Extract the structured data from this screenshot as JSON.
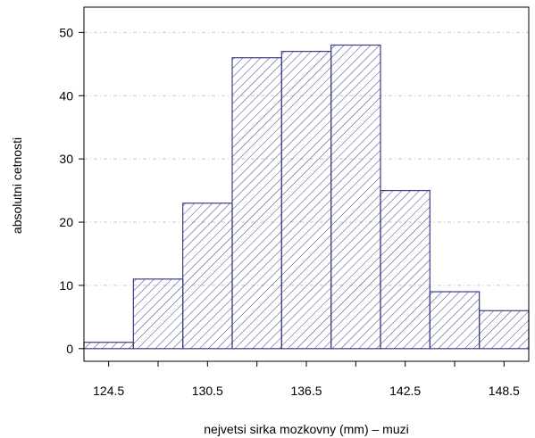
{
  "chart_data": {
    "type": "bar",
    "title": "",
    "xlabel": "nejvetsi sirka mozkovny (mm) – muzi",
    "ylabel": "absolutni cetnosti",
    "bins": [
      {
        "from": 123,
        "to": 126,
        "count": 1
      },
      {
        "from": 126,
        "to": 129,
        "count": 11
      },
      {
        "from": 129,
        "to": 132,
        "count": 23
      },
      {
        "from": 132,
        "to": 135,
        "count": 46
      },
      {
        "from": 135,
        "to": 138,
        "count": 47
      },
      {
        "from": 138,
        "to": 141,
        "count": 48
      },
      {
        "from": 141,
        "to": 144,
        "count": 25
      },
      {
        "from": 144,
        "to": 147,
        "count": 9
      },
      {
        "from": 147,
        "to": 150,
        "count": 6
      }
    ],
    "x_ticks": [
      124.5,
      127.5,
      130.5,
      133.5,
      136.5,
      139.5,
      142.5,
      145.5,
      148.5
    ],
    "x_tick_labels": [
      "124.5",
      "",
      "130.5",
      "",
      "136.5",
      "",
      "142.5",
      "",
      "148.5"
    ],
    "y_ticks": [
      0,
      10,
      20,
      30,
      40,
      50
    ],
    "xlim": [
      123,
      150
    ],
    "ylim": [
      -2,
      54
    ],
    "grid": "horizontal-dashed",
    "colors": {
      "bar_outline": "#3b3f86",
      "hatch": "#3b3f86",
      "grid": "#c8c8c8",
      "axis": "#000000"
    }
  }
}
